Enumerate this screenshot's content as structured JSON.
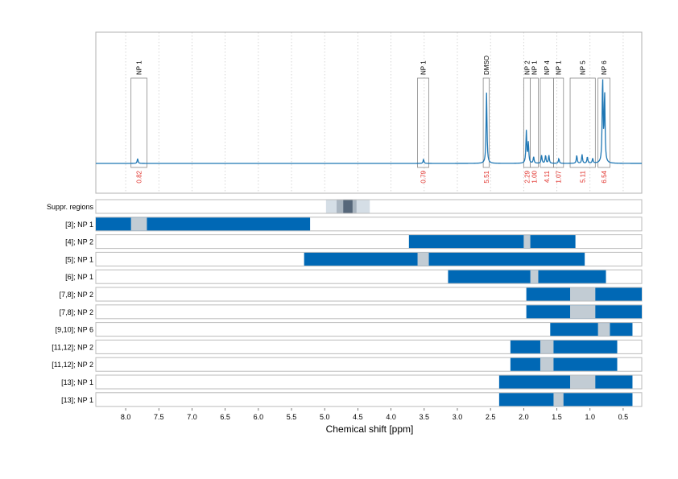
{
  "chart_data": {
    "type": "nmr-spectrum-with-range-bars",
    "xlabel": "Chemical shift [ppm]",
    "x_reversed": true,
    "xlim": [
      8.45,
      0.22
    ],
    "x_ticks": [
      8.0,
      7.5,
      7.0,
      6.5,
      6.0,
      5.5,
      5.0,
      4.5,
      4.0,
      3.5,
      3.0,
      2.5,
      2.0,
      1.5,
      1.0,
      0.5
    ],
    "x_tick_labels": [
      "8.0",
      "7.5",
      "7.0",
      "6.5",
      "6.0",
      "5.5",
      "5.0",
      "4.5",
      "4.0",
      "3.5",
      "3.0",
      "2.5",
      "2.0",
      "1.5",
      "1.0",
      "0.5"
    ],
    "grid": "vertical-dotted",
    "colors": {
      "spectrum": "#1f77b4",
      "bar": "#0068b5",
      "bar_peak": "#c2ccd4",
      "suppr_light": "#d5dee6",
      "suppr_mid": "#a9b5c0",
      "suppr_dark": "#56677a",
      "integral_text": "#e0302a",
      "box": "#8a8a8a",
      "gridline": "#cccccc"
    },
    "spectrum": {
      "peaks": [
        {
          "ppm": 7.82,
          "height": 0.06
        },
        {
          "ppm": 3.51,
          "height": 0.05
        },
        {
          "ppm": 2.56,
          "height": 0.88
        },
        {
          "ppm": 1.96,
          "height": 0.4
        },
        {
          "ppm": 1.93,
          "height": 0.25
        },
        {
          "ppm": 1.85,
          "height": 0.08
        },
        {
          "ppm": 1.73,
          "height": 0.1
        },
        {
          "ppm": 1.67,
          "height": 0.1
        },
        {
          "ppm": 1.62,
          "height": 0.1
        },
        {
          "ppm": 1.47,
          "height": 0.06
        },
        {
          "ppm": 1.2,
          "height": 0.1
        },
        {
          "ppm": 1.12,
          "height": 0.11
        },
        {
          "ppm": 1.04,
          "height": 0.08
        },
        {
          "ppm": 0.96,
          "height": 0.06
        },
        {
          "ppm": 0.81,
          "height": 1.05
        },
        {
          "ppm": 0.78,
          "height": 0.85
        }
      ]
    },
    "annotations": [
      {
        "label": "NP 1",
        "left": 7.92,
        "right": 7.68,
        "integral": "0.82"
      },
      {
        "label": "NP 1",
        "left": 3.6,
        "right": 3.43,
        "integral": "0.79"
      },
      {
        "label": "DMSO",
        "left": 2.61,
        "right": 2.52,
        "integral": "5.51"
      },
      {
        "label": "NP 2",
        "left": 2.0,
        "right": 1.9,
        "integral": "2.29"
      },
      {
        "label": "NP 1",
        "left": 1.9,
        "right": 1.78,
        "integral": "1.00"
      },
      {
        "label": "NP 4",
        "left": 1.75,
        "right": 1.55,
        "integral": "4.11"
      },
      {
        "label": "NP 1",
        "left": 1.55,
        "right": 1.4,
        "integral": "1.07"
      },
      {
        "label": "NP 5",
        "left": 1.3,
        "right": 0.92,
        "integral": "5.11"
      },
      {
        "label": "NP 6",
        "left": 0.88,
        "right": 0.7,
        "integral": "6.54"
      }
    ],
    "suppression_row": {
      "label": "Suppr. regions",
      "segments": [
        {
          "from": 4.98,
          "to": 4.32,
          "shade": "light"
        },
        {
          "from": 4.82,
          "to": 4.52,
          "shade": "mid"
        },
        {
          "from": 4.72,
          "to": 4.58,
          "shade": "dark"
        }
      ]
    },
    "rows": [
      {
        "label": "[3]; NP 1",
        "bar": [
          8.45,
          5.22
        ],
        "peak": [
          7.92,
          7.68
        ]
      },
      {
        "label": "[4]; NP 2",
        "bar": [
          3.73,
          1.22
        ],
        "peak": [
          2.0,
          1.9
        ]
      },
      {
        "label": "[5]; NP 1",
        "bar": [
          5.31,
          1.08
        ],
        "peak": [
          3.6,
          3.43
        ]
      },
      {
        "label": "[6]; NP 1",
        "bar": [
          3.14,
          0.76
        ],
        "peak": [
          1.9,
          1.78
        ]
      },
      {
        "label": "[7,8]; NP 2",
        "bar": [
          1.96,
          0.22
        ],
        "peak": [
          1.3,
          0.92
        ]
      },
      {
        "label": "[7,8]; NP 2",
        "bar": [
          1.96,
          0.22
        ],
        "peak": [
          1.3,
          0.92
        ]
      },
      {
        "label": "[9,10]; NP 6",
        "bar": [
          1.6,
          0.36
        ],
        "peak": [
          0.88,
          0.7
        ]
      },
      {
        "label": "[11,12]; NP 2",
        "bar": [
          2.2,
          0.59
        ],
        "peak": [
          1.75,
          1.55
        ]
      },
      {
        "label": "[11,12]; NP 2",
        "bar": [
          2.2,
          0.59
        ],
        "peak": [
          1.75,
          1.55
        ]
      },
      {
        "label": "[13]; NP 1",
        "bar": [
          2.37,
          0.36
        ],
        "peak": [
          1.3,
          0.92
        ]
      },
      {
        "label": "[13]; NP 1",
        "bar": [
          2.37,
          0.36
        ],
        "peak": [
          1.55,
          1.4
        ]
      }
    ]
  }
}
